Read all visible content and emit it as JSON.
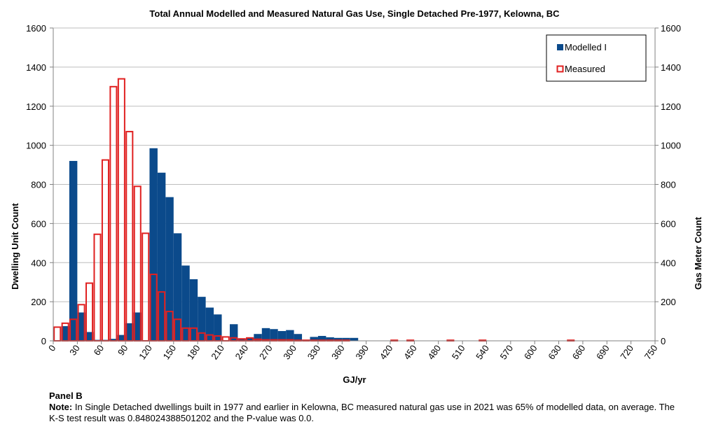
{
  "colors": {
    "modelled": "#0b4a8b",
    "measured": "#e02020",
    "grid": "#bdbdbd",
    "axis": "#808080"
  },
  "chart_data": {
    "type": "bar",
    "title": "Total Annual Modelled and Measured Natural Gas Use, Single Detached Pre-1977, Kelowna, BC",
    "xlabel": "GJ/yr",
    "ylabel": "Dwelling Unit Count",
    "y2label": "Gas Meter Count",
    "xlim": [
      0,
      750
    ],
    "ylim": [
      0,
      1600
    ],
    "y2lim": [
      0,
      1600
    ],
    "bin_width": 10,
    "x_ticks": [
      0,
      30,
      60,
      90,
      120,
      150,
      180,
      210,
      240,
      270,
      300,
      330,
      360,
      390,
      420,
      450,
      480,
      510,
      540,
      570,
      600,
      630,
      660,
      690,
      720,
      750
    ],
    "y_ticks": [
      0,
      200,
      400,
      600,
      800,
      1000,
      1200,
      1400,
      1600
    ],
    "grid": "horizontal",
    "legend_position": "top-right",
    "series": [
      {
        "name": "Modelled I",
        "style": "filled",
        "axis": "left",
        "points": [
          [
            10,
            75
          ],
          [
            20,
            920
          ],
          [
            30,
            145
          ],
          [
            40,
            45
          ],
          [
            50,
            5
          ],
          [
            60,
            5
          ],
          [
            70,
            10
          ],
          [
            80,
            30
          ],
          [
            90,
            90
          ],
          [
            100,
            145
          ],
          [
            120,
            985
          ],
          [
            130,
            860
          ],
          [
            140,
            735
          ],
          [
            150,
            550
          ],
          [
            160,
            385
          ],
          [
            170,
            315
          ],
          [
            180,
            225
          ],
          [
            190,
            170
          ],
          [
            200,
            135
          ],
          [
            220,
            85
          ],
          [
            230,
            10
          ],
          [
            240,
            15
          ],
          [
            250,
            35
          ],
          [
            260,
            65
          ],
          [
            270,
            60
          ],
          [
            280,
            50
          ],
          [
            290,
            55
          ],
          [
            300,
            35
          ],
          [
            310,
            5
          ],
          [
            320,
            20
          ],
          [
            330,
            25
          ],
          [
            340,
            18
          ],
          [
            350,
            15
          ],
          [
            360,
            15
          ],
          [
            370,
            15
          ]
        ]
      },
      {
        "name": "Measured",
        "style": "outline",
        "axis": "right",
        "points": [
          [
            0,
            70
          ],
          [
            10,
            90
          ],
          [
            20,
            110
          ],
          [
            30,
            185
          ],
          [
            40,
            295
          ],
          [
            50,
            545
          ],
          [
            60,
            925
          ],
          [
            70,
            1300
          ],
          [
            80,
            1340
          ],
          [
            90,
            1070
          ],
          [
            100,
            790
          ],
          [
            110,
            550
          ],
          [
            120,
            340
          ],
          [
            130,
            250
          ],
          [
            140,
            150
          ],
          [
            150,
            110
          ],
          [
            160,
            65
          ],
          [
            170,
            65
          ],
          [
            180,
            40
          ],
          [
            190,
            30
          ],
          [
            200,
            25
          ],
          [
            210,
            20
          ],
          [
            220,
            15
          ],
          [
            230,
            10
          ],
          [
            240,
            15
          ],
          [
            250,
            8
          ],
          [
            260,
            5
          ],
          [
            270,
            5
          ],
          [
            280,
            5
          ],
          [
            290,
            5
          ],
          [
            300,
            3
          ],
          [
            310,
            3
          ],
          [
            320,
            3
          ],
          [
            330,
            3
          ],
          [
            340,
            3
          ],
          [
            350,
            3
          ],
          [
            360,
            3
          ],
          [
            420,
            3
          ],
          [
            440,
            3
          ],
          [
            490,
            3
          ],
          [
            530,
            3
          ],
          [
            640,
            3
          ]
        ]
      }
    ]
  },
  "footer": {
    "panel_label": "Panel B",
    "note_label": "Note:",
    "note_text": " In Single Detached dwellings built in 1977 and earlier in Kelowna, BC measured natural gas use in 2021 was 65% of modelled data, on average. The K-S test result was 0.848024388501202 and the P-value was 0.0."
  }
}
